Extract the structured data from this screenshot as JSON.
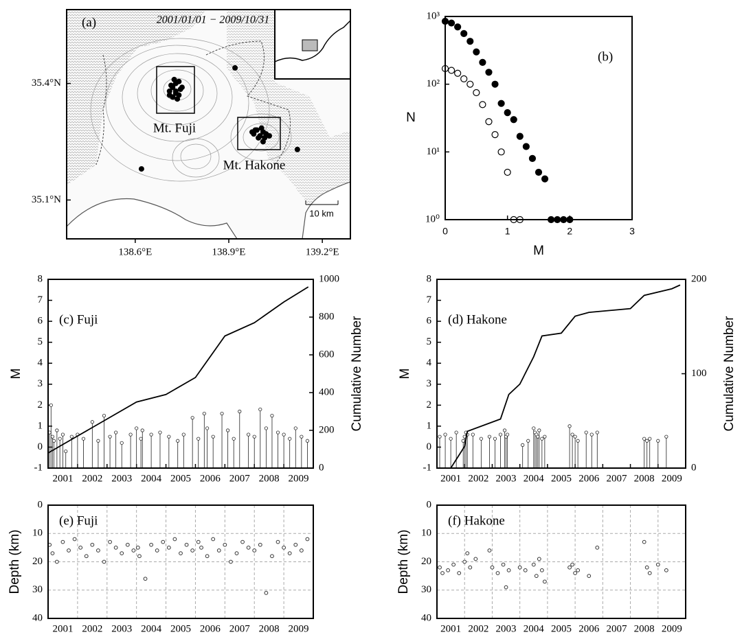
{
  "chart_data": [
    {
      "type": "map",
      "label": "(a)",
      "date_range": "2001/01/01 − 2009/10/31",
      "place_labels": [
        "Mt. Fuji",
        "Mt. Hakone"
      ],
      "scale_label": "10 km",
      "xlim": [
        138.38,
        139.29
      ],
      "ylim": [
        35.0,
        35.59
      ],
      "xticks": [
        {
          "value": 138.6,
          "label": "138.6°E"
        },
        {
          "value": 138.9,
          "label": "138.9°E"
        },
        {
          "value": 139.2,
          "label": "139.2°E"
        }
      ],
      "yticks": [
        {
          "value": 35.1,
          "label": "35.1°N"
        },
        {
          "value": 35.4,
          "label": "35.4°N"
        }
      ],
      "epicenters": {
        "x": [
          138.72,
          138.73,
          138.71,
          138.74,
          138.725,
          138.735,
          138.715,
          138.745,
          138.73,
          138.72,
          138.74,
          138.71,
          138.75,
          138.73,
          138.98,
          138.99,
          139.0,
          139.01,
          139.02,
          138.995,
          139.005,
          139.015,
          138.975,
          139.03,
          138.985,
          139.01,
          138.62,
          139.12,
          138.92
        ],
        "y": [
          35.39,
          35.4,
          35.38,
          35.37,
          35.41,
          35.36,
          35.395,
          35.385,
          35.375,
          35.365,
          35.405,
          35.37,
          35.39,
          35.38,
          35.27,
          35.28,
          35.265,
          35.275,
          35.27,
          35.26,
          35.285,
          35.26,
          35.275,
          35.265,
          35.28,
          35.25,
          35.18,
          35.23,
          35.44
        ]
      }
    },
    {
      "type": "logscatter",
      "label": "(b)",
      "xlabel": "M",
      "ylabel": "N",
      "log_y": true,
      "xlim": [
        0,
        3
      ],
      "xticks": [
        0,
        1,
        2,
        3
      ],
      "ylim": [
        1,
        1000
      ],
      "yticks": [
        {
          "value": 1,
          "label": "10⁰"
        },
        {
          "value": 10,
          "label": "10¹"
        },
        {
          "value": 100,
          "label": "10²"
        },
        {
          "value": 1000,
          "label": "10³"
        }
      ],
      "series": [
        {
          "marker": "filled",
          "color": "#000000",
          "x": [
            0,
            0.1,
            0.2,
            0.3,
            0.4,
            0.5,
            0.6,
            0.7,
            0.8,
            0.9,
            1.0,
            1.1,
            1.2,
            1.3,
            1.4,
            1.5,
            1.6,
            1.7,
            1.8,
            1.9,
            2.0
          ],
          "values": [
            850,
            800,
            700,
            560,
            430,
            300,
            210,
            150,
            100,
            52,
            38,
            30,
            17,
            12,
            8,
            5,
            4,
            1,
            1,
            1,
            1
          ]
        },
        {
          "marker": "open",
          "color": "#000000",
          "x": [
            0,
            0.1,
            0.2,
            0.3,
            0.4,
            0.5,
            0.6,
            0.7,
            0.8,
            0.9,
            1.0,
            1.1,
            1.2
          ],
          "values": [
            170,
            160,
            145,
            120,
            100,
            75,
            50,
            28,
            18,
            10,
            5,
            1,
            1
          ]
        }
      ]
    },
    {
      "type": "stem",
      "label": "(c) Fuji",
      "ylabel": "M",
      "y2label": "Cumulative Number",
      "xlim": [
        2001,
        2010
      ],
      "ylim": [
        -1,
        8
      ],
      "yticks": [
        -1,
        0,
        1,
        2,
        3,
        4,
        5,
        6,
        7,
        8
      ],
      "y2lim": [
        0,
        1000
      ],
      "y2ticks": [
        0,
        200,
        400,
        600,
        800,
        1000
      ],
      "xticks": [
        {
          "value": 2001.5,
          "label": "2001"
        },
        {
          "value": 2002.5,
          "label": "2002"
        },
        {
          "value": 2003.5,
          "label": "2003"
        },
        {
          "value": 2004.5,
          "label": "2004"
        },
        {
          "value": 2005.5,
          "label": "2005"
        },
        {
          "value": 2006.5,
          "label": "2006"
        },
        {
          "value": 2007.5,
          "label": "2007"
        },
        {
          "value": 2008.5,
          "label": "2008"
        },
        {
          "value": 2009.5,
          "label": "2009"
        }
      ],
      "year_bounds": [
        2002,
        2003,
        2004,
        2005,
        2006,
        2007,
        2008,
        2009
      ],
      "events": {
        "x": [
          2001.05,
          2001.1,
          2001.15,
          2001.2,
          2001.3,
          2001.4,
          2001.5,
          2001.6,
          2001.8,
          2002.0,
          2002.2,
          2002.5,
          2002.7,
          2002.9,
          2003.1,
          2003.3,
          2003.5,
          2003.8,
          2004.0,
          2004.15,
          2004.2,
          2004.5,
          2004.8,
          2005.1,
          2005.4,
          2005.6,
          2005.9,
          2006.1,
          2006.3,
          2006.4,
          2006.6,
          2006.9,
          2007.1,
          2007.3,
          2007.5,
          2007.8,
          2008.0,
          2008.2,
          2008.4,
          2008.6,
          2008.8,
          2009.0,
          2009.2,
          2009.4,
          2009.6,
          2009.8
        ],
        "values": [
          0.7,
          2.0,
          0.5,
          0.3,
          0.8,
          0.4,
          0.6,
          -0.2,
          0.5,
          0.6,
          0.4,
          1.2,
          0.3,
          1.5,
          0.5,
          0.7,
          0.2,
          0.6,
          0.9,
          0.4,
          0.8,
          0.6,
          0.7,
          0.5,
          0.3,
          0.6,
          1.4,
          0.4,
          1.6,
          0.9,
          0.5,
          1.6,
          0.8,
          0.4,
          1.7,
          0.6,
          0.5,
          1.8,
          0.9,
          1.5,
          0.7,
          0.6,
          0.4,
          0.9,
          0.5,
          0.3
        ]
      },
      "cumulative": {
        "axis": "y2",
        "x": [
          2001.0,
          2002,
          2003,
          2004,
          2005,
          2006,
          2007,
          2008,
          2009,
          2009.83
        ],
        "values": [
          80,
          170,
          260,
          350,
          390,
          480,
          700,
          770,
          880,
          960
        ]
      }
    },
    {
      "type": "stem",
      "label": "(d) Hakone",
      "ylabel": "M",
      "y2label": "Cumulative Number",
      "xlim": [
        2001,
        2010
      ],
      "ylim": [
        -1,
        8
      ],
      "yticks": [
        -1,
        0,
        1,
        2,
        3,
        4,
        5,
        6,
        7,
        8
      ],
      "y2lim": [
        0,
        200
      ],
      "y2ticks": [
        0,
        100,
        200
      ],
      "xticks": [
        {
          "value": 2001.5,
          "label": "2001"
        },
        {
          "value": 2002.5,
          "label": "2002"
        },
        {
          "value": 2003.5,
          "label": "2003"
        },
        {
          "value": 2004.5,
          "label": "2004"
        },
        {
          "value": 2005.5,
          "label": "2005"
        },
        {
          "value": 2006.5,
          "label": "2006"
        },
        {
          "value": 2007.5,
          "label": "2007"
        },
        {
          "value": 2008.5,
          "label": "2008"
        },
        {
          "value": 2009.5,
          "label": "2009"
        }
      ],
      "year_bounds": [
        2002,
        2003,
        2004,
        2005,
        2006,
        2007,
        2008,
        2009
      ],
      "events": {
        "x": [
          2001.1,
          2001.3,
          2001.5,
          2001.7,
          2001.95,
          2002.0,
          2002.05,
          2002.1,
          2002.3,
          2002.6,
          2002.9,
          2003.1,
          2003.3,
          2003.45,
          2003.5,
          2003.55,
          2004.1,
          2004.3,
          2004.5,
          2004.55,
          2004.6,
          2004.65,
          2004.7,
          2004.8,
          2004.9,
          2005.8,
          2005.9,
          2006.0,
          2006.1,
          2006.4,
          2006.6,
          2006.8,
          2008.5,
          2008.6,
          2008.7,
          2009.0,
          2009.3
        ],
        "values": [
          0.5,
          0.6,
          0.4,
          0.7,
          0.3,
          0.5,
          0.7,
          0.6,
          0.6,
          0.4,
          0.5,
          0.4,
          0.6,
          0.8,
          0.5,
          0.6,
          0.1,
          0.3,
          0.9,
          0.7,
          0.6,
          0.5,
          0.8,
          0.4,
          0.5,
          1.0,
          0.6,
          0.5,
          0.3,
          0.7,
          0.6,
          0.7,
          0.4,
          0.3,
          0.4,
          0.3,
          0.5
        ]
      },
      "cumulative": {
        "axis": "y2",
        "x": [
          2001.5,
          2002,
          2002.1,
          2003.3,
          2003.6,
          2004,
          2004.5,
          2004.8,
          2005.5,
          2006,
          2006.5,
          2008,
          2008.5,
          2009.5,
          2009.8
        ],
        "values": [
          0,
          23,
          39,
          52,
          78,
          89,
          118,
          140,
          143,
          161,
          165,
          169,
          183,
          190,
          194
        ]
      }
    },
    {
      "type": "scatter",
      "label": "(e) Fuji",
      "ylabel": "Depth (km)",
      "grid": true,
      "xlim": [
        2001,
        2010
      ],
      "ylim": [
        40,
        0
      ],
      "yticks": [
        0,
        10,
        20,
        30,
        40
      ],
      "xticks": [
        {
          "value": 2001.5,
          "label": "2001"
        },
        {
          "value": 2002.5,
          "label": "2002"
        },
        {
          "value": 2003.5,
          "label": "2003"
        },
        {
          "value": 2004.5,
          "label": "2004"
        },
        {
          "value": 2005.5,
          "label": "2005"
        },
        {
          "value": 2006.5,
          "label": "2006"
        },
        {
          "value": 2007.5,
          "label": "2007"
        },
        {
          "value": 2008.5,
          "label": "2008"
        },
        {
          "value": 2009.5,
          "label": "2009"
        }
      ],
      "year_bounds": [
        2002,
        2003,
        2004,
        2005,
        2006,
        2007,
        2008,
        2009
      ],
      "x": [
        2001.05,
        2001.15,
        2001.3,
        2001.5,
        2001.7,
        2001.9,
        2002.1,
        2002.3,
        2002.5,
        2002.7,
        2002.9,
        2003.1,
        2003.3,
        2003.5,
        2003.7,
        2003.9,
        2004.05,
        2004.1,
        2004.3,
        2004.5,
        2004.7,
        2004.9,
        2005.1,
        2005.3,
        2005.5,
        2005.7,
        2005.9,
        2006.1,
        2006.2,
        2006.4,
        2006.6,
        2006.8,
        2007.0,
        2007.2,
        2007.4,
        2007.6,
        2007.8,
        2008.0,
        2008.2,
        2008.4,
        2008.6,
        2008.8,
        2009.0,
        2009.2,
        2009.4,
        2009.6,
        2009.8
      ],
      "values": [
        14,
        17,
        20,
        13,
        16,
        12,
        15,
        18,
        14,
        16,
        20,
        13,
        15,
        17,
        14,
        16,
        15,
        18,
        26,
        14,
        16,
        13,
        15,
        12,
        17,
        14,
        16,
        13,
        15,
        18,
        12,
        16,
        14,
        20,
        17,
        13,
        15,
        16,
        14,
        31,
        18,
        13,
        15,
        17,
        14,
        16,
        12
      ]
    },
    {
      "type": "scatter",
      "label": "(f) Hakone",
      "ylabel": "Depth (km)",
      "grid": true,
      "xlim": [
        2001,
        2010
      ],
      "ylim": [
        40,
        0
      ],
      "yticks": [
        0,
        10,
        20,
        30,
        40
      ],
      "xticks": [
        {
          "value": 2001.5,
          "label": "2001"
        },
        {
          "value": 2002.5,
          "label": "2002"
        },
        {
          "value": 2003.5,
          "label": "2003"
        },
        {
          "value": 2004.5,
          "label": "2004"
        },
        {
          "value": 2005.5,
          "label": "2005"
        },
        {
          "value": 2006.5,
          "label": "2006"
        },
        {
          "value": 2007.5,
          "label": "2007"
        },
        {
          "value": 2008.5,
          "label": "2008"
        },
        {
          "value": 2009.5,
          "label": "2009"
        }
      ],
      "year_bounds": [
        2002,
        2003,
        2004,
        2005,
        2006,
        2007,
        2008,
        2009
      ],
      "x": [
        2001.1,
        2001.2,
        2001.4,
        2001.6,
        2001.8,
        2002.0,
        2002.1,
        2002.2,
        2002.4,
        2002.9,
        2003.0,
        2003.2,
        2003.4,
        2003.5,
        2003.6,
        2004.0,
        2004.2,
        2004.5,
        2004.6,
        2004.7,
        2004.8,
        2004.9,
        2005.8,
        2005.9,
        2006.0,
        2006.1,
        2006.5,
        2006.8,
        2008.5,
        2008.6,
        2008.7,
        2009.0,
        2009.3
      ],
      "values": [
        22,
        24,
        23,
        21,
        24,
        20,
        17,
        22,
        19,
        16,
        22,
        24,
        21,
        29,
        23,
        22,
        23,
        21,
        25,
        19,
        23,
        27,
        22,
        21,
        24,
        23,
        25,
        15,
        13,
        22,
        24,
        21,
        23
      ]
    }
  ]
}
